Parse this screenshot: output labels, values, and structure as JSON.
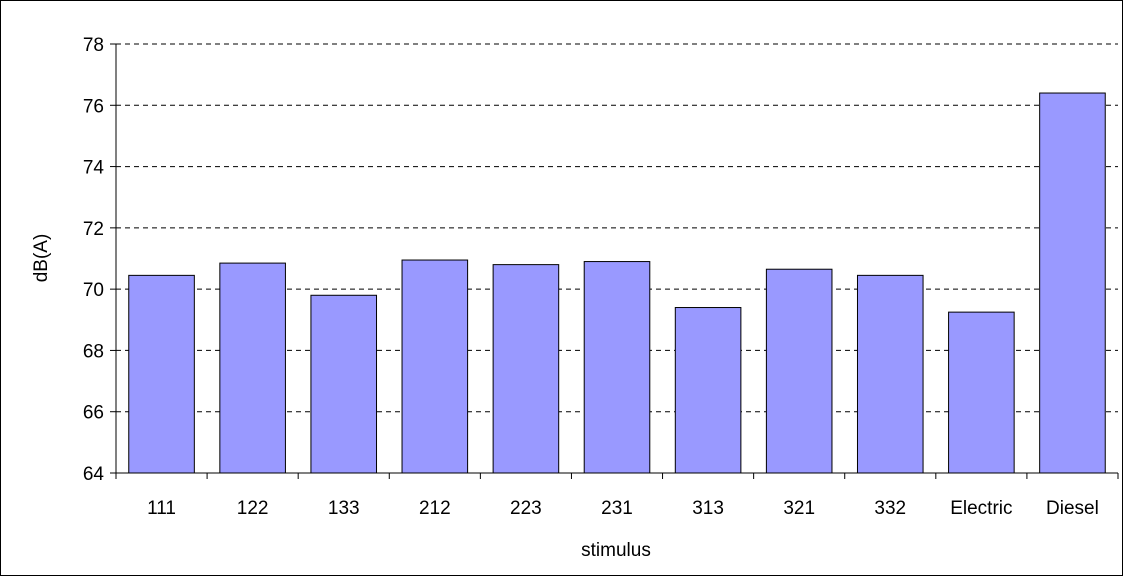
{
  "chart_data": {
    "type": "bar",
    "title": "",
    "xlabel": "stimulus",
    "ylabel": "dB(A)",
    "categories": [
      "111",
      "122",
      "133",
      "212",
      "223",
      "231",
      "313",
      "321",
      "332",
      "Electric",
      "Diesel"
    ],
    "values": [
      70.45,
      70.85,
      69.8,
      70.95,
      70.8,
      70.9,
      69.4,
      70.65,
      70.45,
      69.25,
      76.4
    ],
    "ylim": [
      64,
      78
    ],
    "yticks": [
      64,
      66,
      68,
      70,
      72,
      74,
      76,
      78
    ],
    "grid": "horizontal dashed",
    "legend": "none",
    "bar_color": "#9999FF",
    "bar_edge_color": "#000000"
  }
}
